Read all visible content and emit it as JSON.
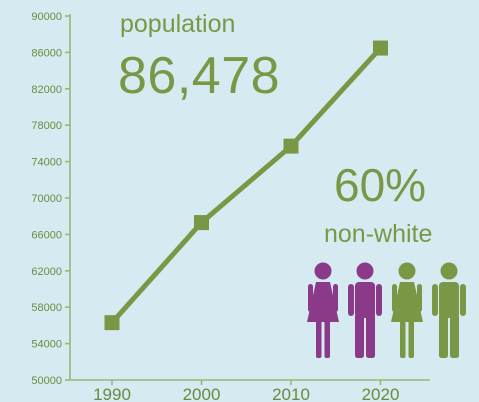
{
  "colors": {
    "background": "#d5ebf1",
    "accent_green": "#7a9745",
    "line_green": "#7a9745",
    "purple": "#8b3a89",
    "axis": "#9bb577"
  },
  "headline": {
    "population_label": "population",
    "population_value": "86,478",
    "percent_value": "60%",
    "percent_label": "non-white"
  },
  "people_icons": [
    {
      "icon": "female-person-icon",
      "color": "#8b3a89"
    },
    {
      "icon": "male-person-icon",
      "color": "#8b3a89"
    },
    {
      "icon": "female-person-icon",
      "color": "#7a9745"
    },
    {
      "icon": "male-person-icon",
      "color": "#7a9745"
    }
  ],
  "chart_data": {
    "type": "line",
    "x": [
      "1990",
      "2000",
      "2010",
      "2020"
    ],
    "values": [
      56300,
      67300,
      75700,
      86478
    ],
    "ylim": [
      50000,
      90000
    ],
    "yticks": [
      "50000",
      "54000",
      "58000",
      "62000",
      "66000",
      "70000",
      "74000",
      "78000",
      "82000",
      "86000",
      "90000"
    ],
    "ytick_values": [
      50000,
      54000,
      58000,
      62000,
      66000,
      70000,
      74000,
      78000,
      82000,
      86000,
      90000
    ],
    "grid": false,
    "marker": "square"
  }
}
